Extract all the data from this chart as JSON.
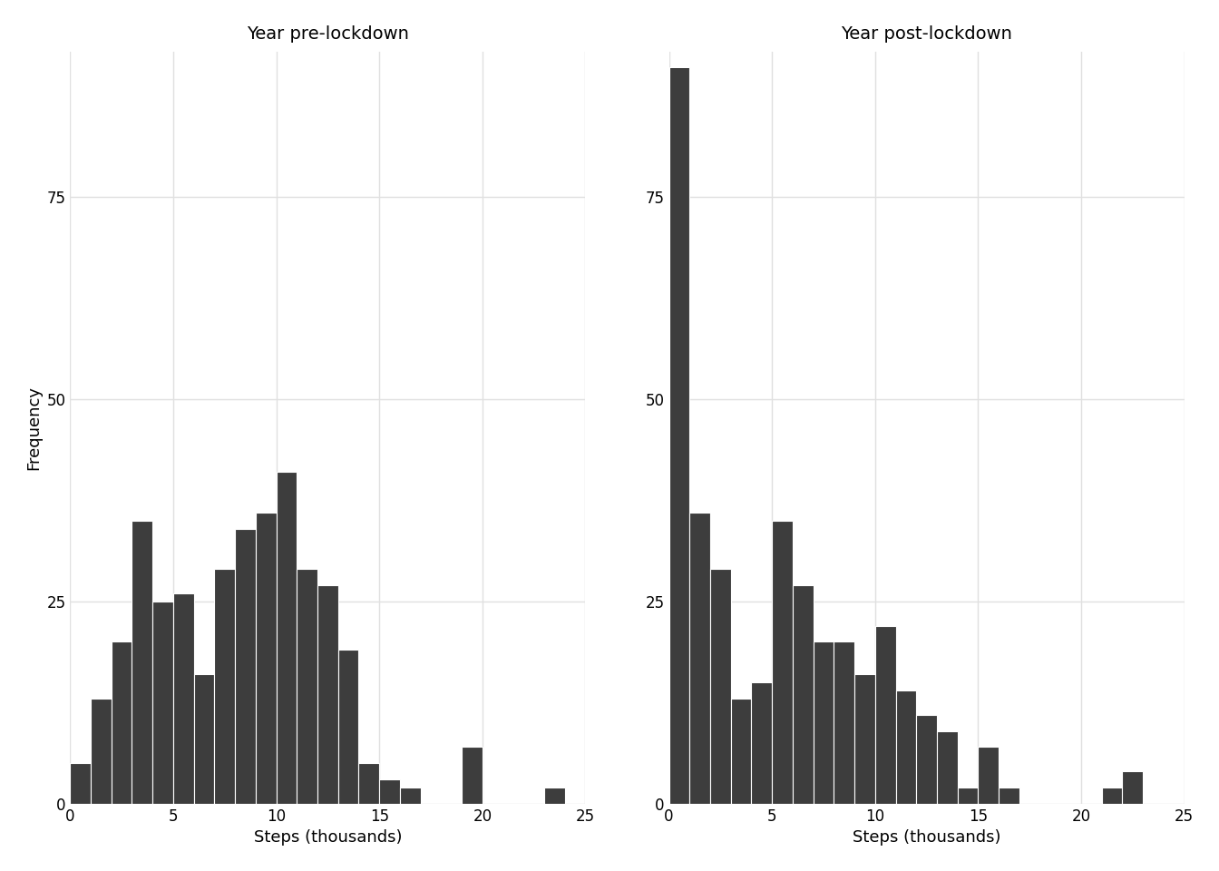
{
  "title_left": "Year pre-lockdown",
  "title_right": "Year post-lockdown",
  "xlabel": "Steps (thousands)",
  "ylabel": "Frequency",
  "bar_color": "#3d3d3d",
  "bar_edgecolor": "#ffffff",
  "background_color": "#ffffff",
  "grid_color": "#e0e0e0",
  "ylim": [
    0,
    93
  ],
  "yticks": [
    0,
    25,
    50,
    75
  ],
  "xticks": [
    0,
    5,
    10,
    15,
    20,
    25
  ],
  "pre_bin_edges": [
    0,
    1,
    2,
    3,
    4,
    5,
    6,
    7,
    8,
    9,
    10,
    11,
    12,
    13,
    14,
    15,
    16,
    17,
    18,
    19,
    20,
    21,
    22,
    23,
    24,
    25
  ],
  "pre_counts": [
    5,
    13,
    20,
    35,
    25,
    26,
    16,
    29,
    34,
    36,
    41,
    29,
    27,
    19,
    5,
    3,
    2,
    0,
    0,
    7,
    0,
    0,
    0,
    2,
    0
  ],
  "post_bin_edges": [
    0,
    1,
    2,
    3,
    4,
    5,
    6,
    7,
    8,
    9,
    10,
    11,
    12,
    13,
    14,
    15,
    16,
    17,
    18,
    19,
    20,
    21,
    22,
    23,
    24,
    25
  ],
  "post_counts": [
    91,
    36,
    29,
    13,
    15,
    35,
    27,
    20,
    20,
    16,
    22,
    14,
    11,
    9,
    2,
    7,
    2,
    0,
    0,
    0,
    0,
    2,
    4,
    0,
    0
  ]
}
